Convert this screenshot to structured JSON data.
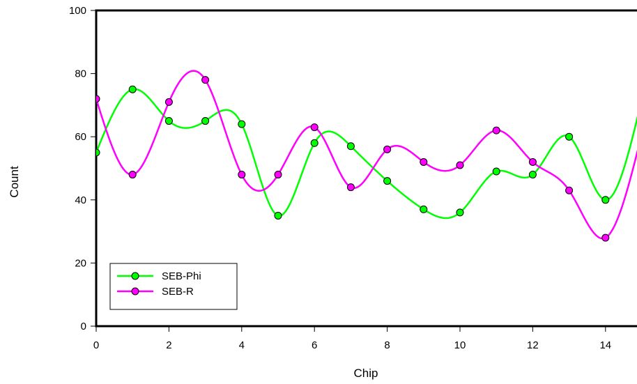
{
  "chart_data": {
    "type": "line",
    "title": "",
    "xlabel": "Chip",
    "ylabel": "Count",
    "xlim": [
      0,
      15
    ],
    "ylim": [
      0,
      100
    ],
    "x_ticks": [
      0,
      2,
      4,
      6,
      8,
      10,
      12,
      14
    ],
    "y_ticks": [
      0,
      20,
      40,
      60,
      80,
      100
    ],
    "x": [
      0,
      1,
      2,
      3,
      4,
      5,
      6,
      7,
      8,
      9,
      10,
      11,
      12,
      13,
      14,
      15
    ],
    "series": [
      {
        "name": "SEB-Phi",
        "color": "#00ff00",
        "values": [
          55,
          75,
          65,
          65,
          64,
          35,
          58,
          57,
          46,
          37,
          36,
          49,
          48,
          60,
          40,
          72
        ]
      },
      {
        "name": "SEB-R",
        "color": "#ff00ff",
        "values": [
          72,
          48,
          71,
          78,
          48,
          48,
          63,
          44,
          56,
          52,
          51,
          62,
          52,
          43,
          28,
          61
        ]
      }
    ],
    "legend_position": "bottom-left",
    "grid": false,
    "line_style": "smooth spline with circular markers"
  }
}
